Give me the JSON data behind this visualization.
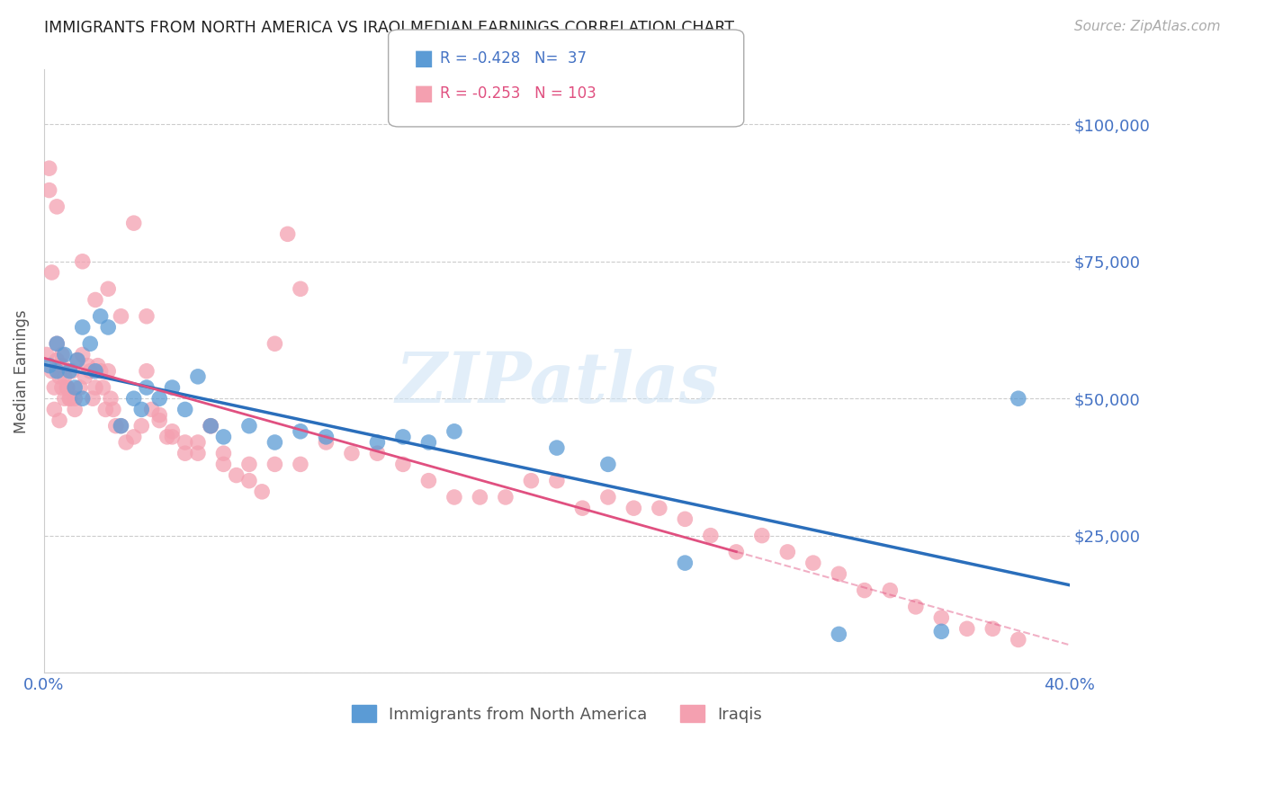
{
  "title": "IMMIGRANTS FROM NORTH AMERICA VS IRAQI MEDIAN EARNINGS CORRELATION CHART",
  "source_text": "Source: ZipAtlas.com",
  "ylabel": "Median Earnings",
  "watermark": "ZIPatlas",
  "xlim": [
    0.0,
    0.4
  ],
  "ylim": [
    0,
    110000
  ],
  "yticks": [
    0,
    25000,
    50000,
    75000,
    100000
  ],
  "ytick_labels": [
    "",
    "$25,000",
    "$50,000",
    "$75,000",
    "$100,000"
  ],
  "xticks": [
    0.0,
    0.1,
    0.2,
    0.3,
    0.4
  ],
  "xtick_labels": [
    "0.0%",
    "",
    "",
    "",
    "40.0%"
  ],
  "blue_color": "#5b9bd5",
  "pink_color": "#f4a0b0",
  "trend_blue_color": "#2a6ebb",
  "trend_pink_color": "#e05080",
  "axis_color": "#4472c4",
  "title_color": "#222222",
  "legend_R_blue": "-0.428",
  "legend_N_blue": "37",
  "legend_R_pink": "-0.253",
  "legend_N_pink": "103",
  "legend_label_blue": "Immigrants from North America",
  "legend_label_pink": "Iraqis",
  "blue_scatter_x": [
    0.002,
    0.005,
    0.005,
    0.008,
    0.01,
    0.012,
    0.013,
    0.015,
    0.015,
    0.018,
    0.02,
    0.022,
    0.025,
    0.03,
    0.035,
    0.038,
    0.04,
    0.045,
    0.05,
    0.055,
    0.06,
    0.065,
    0.07,
    0.08,
    0.09,
    0.1,
    0.11,
    0.13,
    0.14,
    0.15,
    0.16,
    0.2,
    0.22,
    0.25,
    0.31,
    0.35,
    0.38
  ],
  "blue_scatter_y": [
    56000,
    60000,
    55000,
    58000,
    55000,
    52000,
    57000,
    50000,
    63000,
    60000,
    55000,
    65000,
    63000,
    45000,
    50000,
    48000,
    52000,
    50000,
    52000,
    48000,
    54000,
    45000,
    43000,
    45000,
    42000,
    44000,
    43000,
    42000,
    43000,
    42000,
    44000,
    41000,
    38000,
    20000,
    7000,
    7500,
    50000
  ],
  "pink_scatter_x": [
    0.001,
    0.002,
    0.002,
    0.003,
    0.004,
    0.005,
    0.005,
    0.006,
    0.006,
    0.007,
    0.007,
    0.008,
    0.008,
    0.009,
    0.01,
    0.01,
    0.011,
    0.012,
    0.012,
    0.013,
    0.014,
    0.015,
    0.016,
    0.017,
    0.018,
    0.019,
    0.02,
    0.021,
    0.022,
    0.023,
    0.024,
    0.025,
    0.026,
    0.027,
    0.028,
    0.03,
    0.032,
    0.035,
    0.038,
    0.04,
    0.042,
    0.045,
    0.048,
    0.05,
    0.055,
    0.06,
    0.065,
    0.07,
    0.08,
    0.09,
    0.1,
    0.11,
    0.12,
    0.13,
    0.14,
    0.15,
    0.16,
    0.17,
    0.18,
    0.19,
    0.2,
    0.21,
    0.22,
    0.23,
    0.24,
    0.25,
    0.26,
    0.27,
    0.28,
    0.29,
    0.3,
    0.31,
    0.32,
    0.33,
    0.34,
    0.35,
    0.36,
    0.37,
    0.38,
    0.015,
    0.02,
    0.025,
    0.03,
    0.035,
    0.04,
    0.045,
    0.05,
    0.055,
    0.06,
    0.065,
    0.07,
    0.075,
    0.08,
    0.085,
    0.09,
    0.095,
    0.1,
    0.005,
    0.007,
    0.009,
    0.003,
    0.004,
    0.006
  ],
  "pink_scatter_y": [
    58000,
    92000,
    88000,
    55000,
    52000,
    60000,
    57000,
    56000,
    54000,
    58000,
    52000,
    54000,
    50000,
    52000,
    50000,
    50000,
    55000,
    48000,
    50000,
    57000,
    52000,
    58000,
    54000,
    56000,
    55000,
    50000,
    52000,
    56000,
    55000,
    52000,
    48000,
    55000,
    50000,
    48000,
    45000,
    45000,
    42000,
    43000,
    45000,
    55000,
    48000,
    46000,
    43000,
    43000,
    40000,
    40000,
    45000,
    40000,
    38000,
    38000,
    38000,
    42000,
    40000,
    40000,
    38000,
    35000,
    32000,
    32000,
    32000,
    35000,
    35000,
    30000,
    32000,
    30000,
    30000,
    28000,
    25000,
    22000,
    25000,
    22000,
    20000,
    18000,
    15000,
    15000,
    12000,
    10000,
    8000,
    8000,
    6000,
    75000,
    68000,
    70000,
    65000,
    82000,
    65000,
    47000,
    44000,
    42000,
    42000,
    45000,
    38000,
    36000,
    35000,
    33000,
    60000,
    80000,
    70000,
    85000,
    56000,
    52000,
    73000,
    48000,
    46000
  ]
}
